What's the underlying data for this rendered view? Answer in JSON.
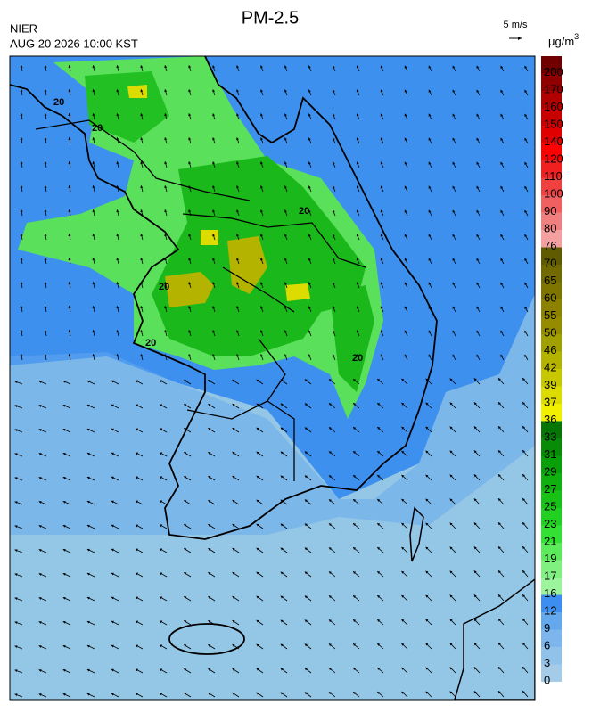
{
  "title": "PM-2.5",
  "agency": "NIER",
  "datetime": "AUG 20 2026 10:00 KST",
  "wind_scale": "5 m/s",
  "unit": "μg/m",
  "unit_power": "3",
  "contour_label": "20",
  "colorbar": {
    "levels": [
      0,
      3,
      6,
      9,
      12,
      16,
      17,
      19,
      21,
      23,
      25,
      27,
      29,
      31,
      33,
      36,
      37,
      39,
      42,
      46,
      50,
      55,
      60,
      65,
      70,
      76,
      80,
      90,
      100,
      110,
      120,
      140,
      150,
      160,
      170,
      200
    ],
    "colors": [
      "#a4cce8",
      "#90c2ea",
      "#7cb6ec",
      "#64a8ee",
      "#3c8ef0",
      "#9cf59c",
      "#80f080",
      "#5aea5a",
      "#34e034",
      "#22d022",
      "#18c018",
      "#10b010",
      "#0aa00a",
      "#088c08",
      "#067606",
      "#f0f000",
      "#dcdc00",
      "#c8c800",
      "#b4b400",
      "#a0a000",
      "#968c00",
      "#8c8200",
      "#7d7500",
      "#706a00",
      "#605a00",
      "#f4a0a0",
      "#f08080",
      "#f06060",
      "#f04040",
      "#f02020",
      "#ff0000",
      "#e00000",
      "#c80000",
      "#b00000",
      "#900000",
      "#700000"
    ]
  }
}
